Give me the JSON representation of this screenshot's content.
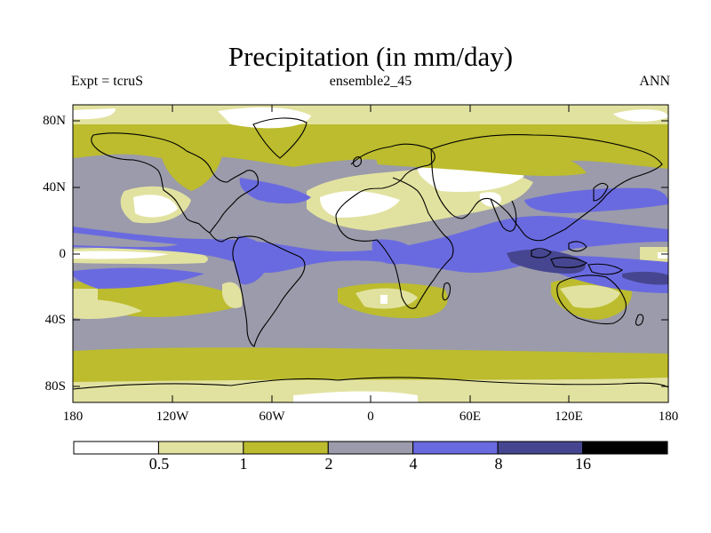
{
  "title": "Precipitation (in mm/day)",
  "subtitle": {
    "left": "Expt = tcruS",
    "center": "ensemble2_45",
    "right": "ANN"
  },
  "map": {
    "projection": "cylindrical equidistant",
    "lon_range": [
      -180,
      180
    ],
    "lat_range": [
      -90,
      90
    ],
    "y_ticks": [
      "80N",
      "40N",
      "0",
      "40S",
      "80S"
    ],
    "x_ticks": [
      "180",
      "120W",
      "60W",
      "0",
      "60E",
      "120E",
      "180"
    ]
  },
  "colorbar": {
    "labels": [
      "0.5",
      "1",
      "2",
      "4",
      "8",
      "16"
    ],
    "colors": [
      "#ffffff",
      "#e2e2a0",
      "#bcbc2e",
      "#9b9bab",
      "#6a6ae0",
      "#464690",
      "#000000"
    ]
  }
}
